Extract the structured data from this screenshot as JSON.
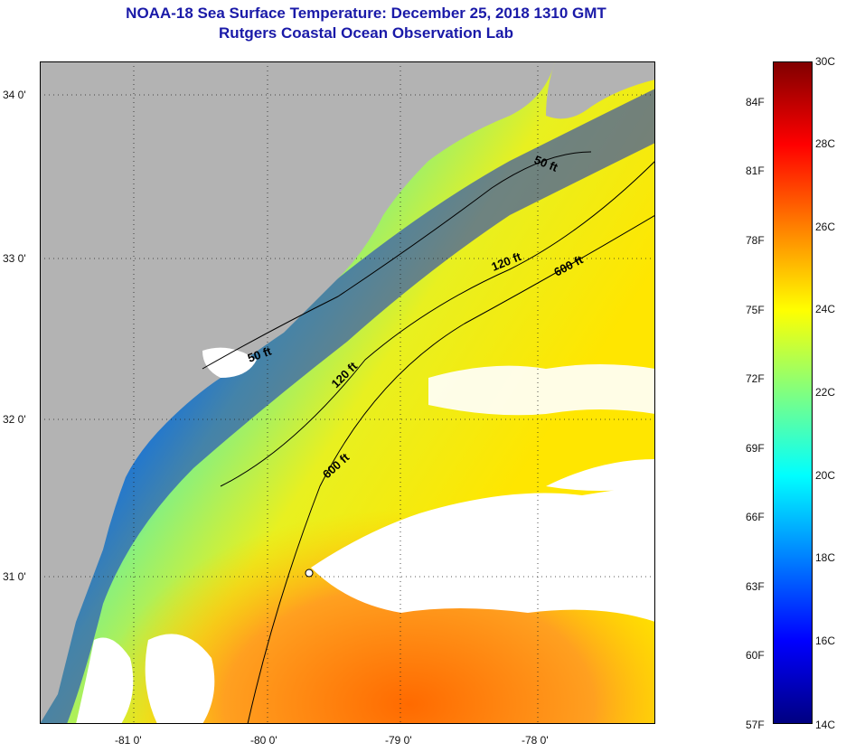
{
  "header": {
    "title": "NOAA-18 Sea Surface Temperature:  December 25, 2018 1310 GMT",
    "subtitle": "Rutgers Coastal Ocean Observation Lab"
  },
  "map": {
    "lat_ticks": [
      "34 0'",
      "33 0'",
      "32 0'",
      "31 0'"
    ],
    "lon_ticks": [
      "-81 0'",
      "-80 0'",
      "-79 0'",
      "-78 0'"
    ],
    "isobath_labels": [
      "50 ft",
      "120 ft",
      "600 ft",
      "50 ft",
      "120 ft",
      "600 ft"
    ],
    "colors": {
      "land": "#b3b3b3",
      "cloud": "#ffffff",
      "isobath": "#000000"
    }
  },
  "colorbar": {
    "celsius_labels": [
      "30C",
      "28C",
      "26C",
      "24C",
      "22C",
      "20C",
      "18C",
      "16C",
      "14C"
    ],
    "fahrenheit_labels": [
      "84F",
      "81F",
      "78F",
      "75F",
      "72F",
      "69F",
      "66F",
      "63F",
      "60F",
      "57F"
    ],
    "range_c": [
      14,
      30
    ],
    "palette": [
      "#800000",
      "#ff0000",
      "#ff8000",
      "#ffff00",
      "#80ff80",
      "#00ffff",
      "#0080ff",
      "#0000ff",
      "#000080"
    ]
  }
}
